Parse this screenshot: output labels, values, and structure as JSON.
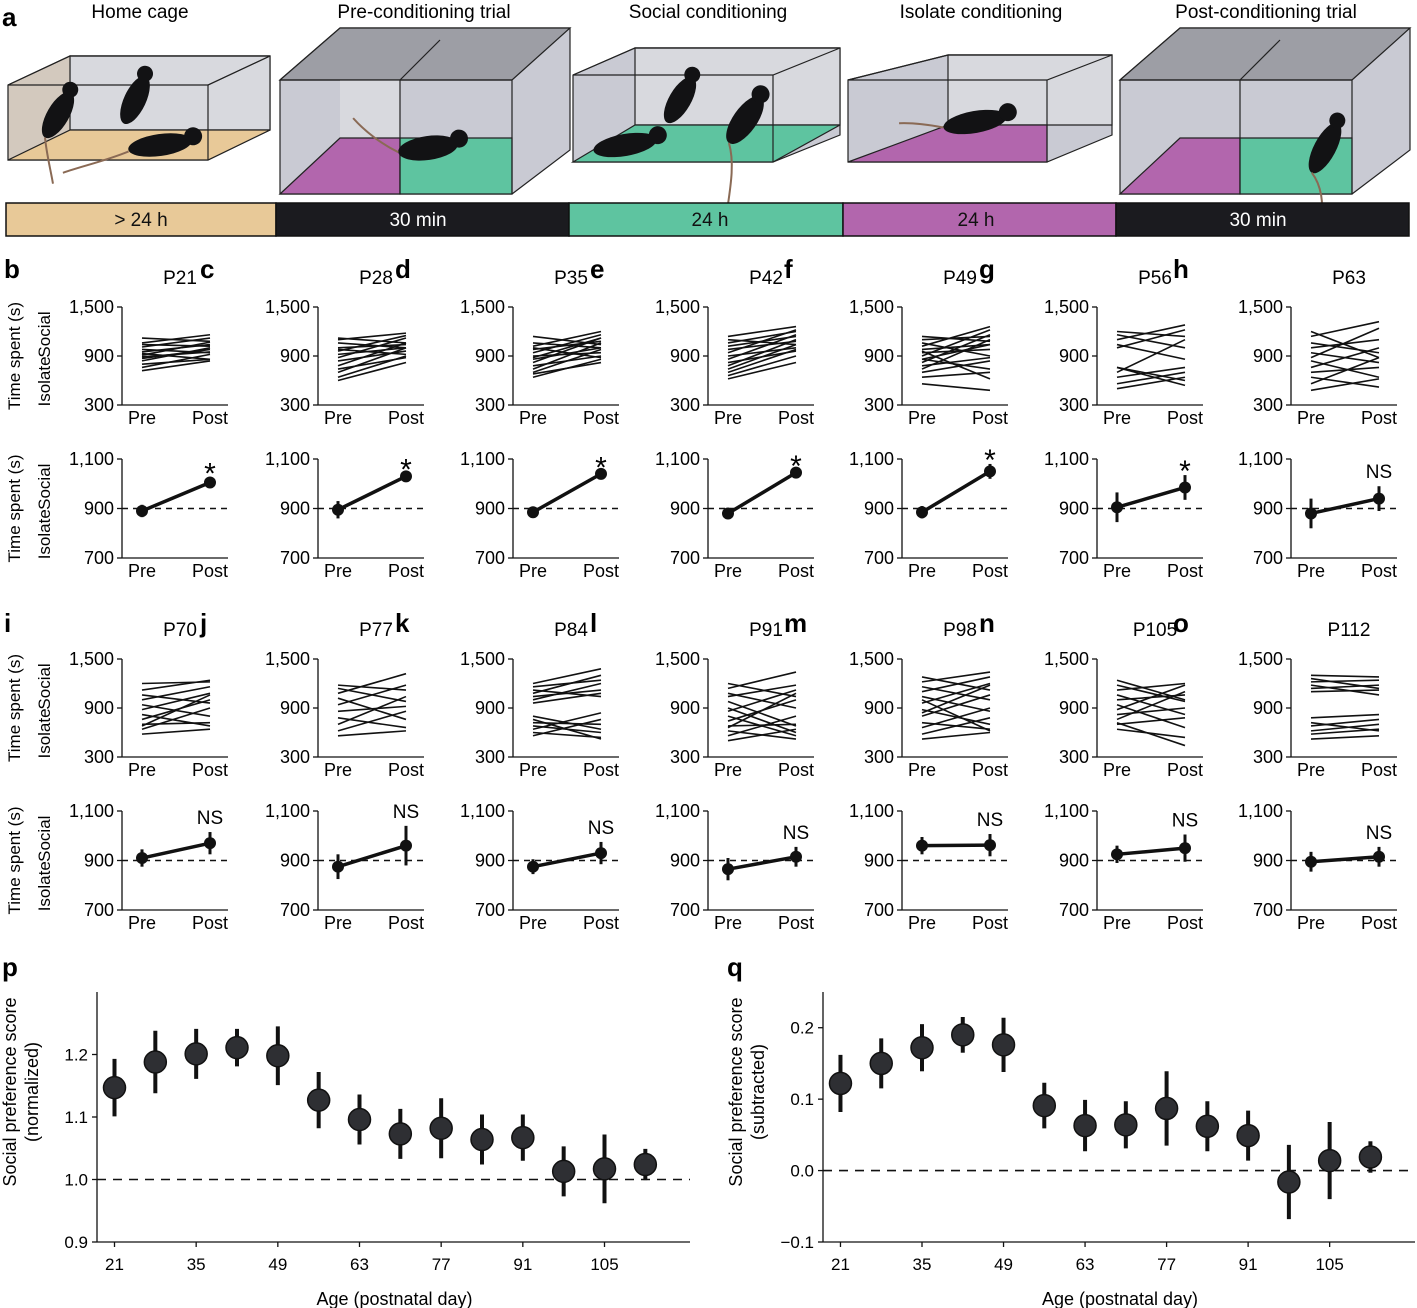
{
  "panel_a": {
    "letter": "a",
    "stages": [
      {
        "label": "Home cage",
        "duration": "> 24 h",
        "floor_color": "#e8c998",
        "timeline_color": "#e8c998",
        "timeline_text_color": "#111111"
      },
      {
        "label": "Pre-conditioning trial",
        "duration": "30 min",
        "floor_color": "#b266ad",
        "floor_color_2": "#5ec4a0",
        "timeline_color": "#1b1b1f",
        "timeline_text_color": "#ffffff"
      },
      {
        "label": "Social conditioning",
        "duration": "24 h",
        "floor_color": "#5ec4a0",
        "timeline_color": "#5ec4a0",
        "timeline_text_color": "#111111"
      },
      {
        "label": "Isolate conditioning",
        "duration": "24 h",
        "floor_color": "#b266ad",
        "timeline_color": "#b266ad",
        "timeline_text_color": "#111111"
      },
      {
        "label": "Post-conditioning trial",
        "duration": "30 min",
        "floor_color": "#b266ad",
        "floor_color_2": "#5ec4a0",
        "timeline_color": "#1b1b1f",
        "timeline_text_color": "#ffffff"
      }
    ],
    "icons": [
      "mouse-icon",
      "arena-box-icon"
    ],
    "box_colors": {
      "wall": "#c9cad3",
      "top": "#9d9ea5",
      "edge": "#222222"
    }
  },
  "small_plots": {
    "ylabel_main": "Time spent (s)",
    "ylabel_top": "Social",
    "ylabel_bottom": "Isolate",
    "xticks": [
      "Pre",
      "Post"
    ],
    "individual_yticks": [
      "300",
      "900",
      "1,500"
    ],
    "individual_ylim": [
      300,
      1500
    ],
    "mean_yticks": [
      "700",
      "900",
      "1,100"
    ],
    "mean_ylim": [
      700,
      1100
    ],
    "mean_reference": 900
  },
  "chart_data": [
    {
      "type": "line",
      "panel": "b",
      "title": "P21",
      "individual": [
        [
          760,
          920
        ],
        [
          800,
          860
        ],
        [
          840,
          1000
        ],
        [
          870,
          980
        ],
        [
          890,
          950
        ],
        [
          910,
          1070
        ],
        [
          930,
          860
        ],
        [
          950,
          1040
        ],
        [
          980,
          940
        ],
        [
          1010,
          1120
        ],
        [
          1040,
          1020
        ],
        [
          1060,
          1160
        ],
        [
          720,
          840
        ],
        [
          1120,
          1080
        ]
      ],
      "mean": {
        "pre": 890,
        "pre_err": 25,
        "post": 1005,
        "post_err": 20
      },
      "significance": "*"
    },
    {
      "type": "line",
      "panel": "c",
      "title": "P28",
      "individual": [
        [
          640,
          900
        ],
        [
          700,
          1000
        ],
        [
          740,
          880
        ],
        [
          780,
          1060
        ],
        [
          840,
          960
        ],
        [
          880,
          1120
        ],
        [
          920,
          1000
        ],
        [
          960,
          1150
        ],
        [
          1000,
          1040
        ],
        [
          1060,
          1000
        ],
        [
          1100,
          1180
        ],
        [
          1120,
          1060
        ],
        [
          600,
          820
        ],
        [
          980,
          920
        ]
      ],
      "mean": {
        "pre": 895,
        "pre_err": 35,
        "post": 1030,
        "post_err": 12
      },
      "significance": "*"
    },
    {
      "type": "line",
      "panel": "d",
      "title": "P35",
      "individual": [
        [
          640,
          860
        ],
        [
          700,
          980
        ],
        [
          740,
          1060
        ],
        [
          780,
          900
        ],
        [
          820,
          1120
        ],
        [
          860,
          1000
        ],
        [
          900,
          940
        ],
        [
          940,
          1160
        ],
        [
          980,
          1080
        ],
        [
          1020,
          1200
        ],
        [
          1060,
          1000
        ],
        [
          1140,
          1040
        ],
        [
          680,
          820
        ],
        [
          880,
          1120
        ],
        [
          1000,
          880
        ]
      ],
      "mean": {
        "pre": 885,
        "pre_err": 15,
        "post": 1040,
        "post_err": 10
      },
      "significance": "*"
    },
    {
      "type": "line",
      "panel": "e",
      "title": "P42",
      "individual": [
        [
          620,
          820
        ],
        [
          660,
          900
        ],
        [
          700,
          980
        ],
        [
          740,
          1040
        ],
        [
          780,
          1100
        ],
        [
          820,
          960
        ],
        [
          860,
          1160
        ],
        [
          900,
          1000
        ],
        [
          940,
          1220
        ],
        [
          980,
          1080
        ],
        [
          1020,
          1140
        ],
        [
          1060,
          1200
        ],
        [
          1100,
          1040
        ],
        [
          1140,
          1260
        ]
      ],
      "mean": {
        "pre": 880,
        "pre_err": 12,
        "post": 1045,
        "post_err": 10
      },
      "significance": "*"
    },
    {
      "type": "line",
      "panel": "f",
      "title": "P49",
      "individual": [
        [
          560,
          480
        ],
        [
          640,
          700
        ],
        [
          700,
          840
        ],
        [
          740,
          1100
        ],
        [
          780,
          880
        ],
        [
          820,
          1160
        ],
        [
          860,
          740
        ],
        [
          900,
          1220
        ],
        [
          940,
          980
        ],
        [
          980,
          1040
        ],
        [
          1020,
          1260
        ],
        [
          1060,
          900
        ],
        [
          1100,
          1140
        ],
        [
          1140,
          1080
        ],
        [
          860,
          1040
        ],
        [
          960,
          620
        ]
      ],
      "mean": {
        "pre": 885,
        "pre_err": 25,
        "post": 1050,
        "post_err": 30
      },
      "significance": "*"
    },
    {
      "type": "line",
      "panel": "g",
      "title": "P56",
      "individual": [
        [
          500,
          640
        ],
        [
          560,
          700
        ],
        [
          640,
          760
        ],
        [
          700,
          1100
        ],
        [
          760,
          600
        ],
        [
          1000,
          1220
        ],
        [
          1040,
          860
        ],
        [
          1100,
          1280
        ],
        [
          1160,
          1000
        ],
        [
          1200,
          1140
        ],
        [
          760,
          540
        ]
      ],
      "mean": {
        "pre": 905,
        "pre_err": 60,
        "post": 985,
        "post_err": 50
      },
      "significance": "*"
    },
    {
      "type": "line",
      "panel": "h",
      "title": "P63",
      "individual": [
        [
          480,
          620
        ],
        [
          560,
          880
        ],
        [
          640,
          520
        ],
        [
          700,
          760
        ],
        [
          760,
          1000
        ],
        [
          840,
          640
        ],
        [
          880,
          1240
        ],
        [
          940,
          820
        ],
        [
          1000,
          1100
        ],
        [
          1060,
          940
        ],
        [
          1140,
          1320
        ],
        [
          1200,
          880
        ]
      ],
      "mean": {
        "pre": 880,
        "pre_err": 60,
        "post": 940,
        "post_err": 50
      },
      "significance": "NS"
    },
    {
      "type": "line",
      "panel": "i",
      "title": "P70",
      "individual": [
        [
          580,
          640
        ],
        [
          640,
          900
        ],
        [
          700,
          720
        ],
        [
          760,
          1000
        ],
        [
          820,
          680
        ],
        [
          880,
          1080
        ],
        [
          940,
          800
        ],
        [
          1000,
          1160
        ],
        [
          1060,
          960
        ],
        [
          1120,
          1240
        ],
        [
          680,
          1060
        ],
        [
          1200,
          1220
        ]
      ],
      "mean": {
        "pre": 910,
        "pre_err": 35,
        "post": 970,
        "post_err": 45
      },
      "significance": "NS"
    },
    {
      "type": "line",
      "panel": "j",
      "title": "P77",
      "individual": [
        [
          560,
          620
        ],
        [
          620,
          860
        ],
        [
          700,
          1040
        ],
        [
          780,
          660
        ],
        [
          860,
          920
        ],
        [
          940,
          1180
        ],
        [
          1020,
          760
        ],
        [
          1080,
          1320
        ],
        [
          1140,
          980
        ],
        [
          1180,
          1120
        ]
      ],
      "mean": {
        "pre": 875,
        "pre_err": 50,
        "post": 960,
        "post_err": 80
      },
      "significance": "NS"
    },
    {
      "type": "line",
      "panel": "k",
      "title": "P84",
      "individual": [
        [
          560,
          760
        ],
        [
          600,
          540
        ],
        [
          640,
          840
        ],
        [
          680,
          600
        ],
        [
          720,
          700
        ],
        [
          760,
          520
        ],
        [
          800,
          640
        ],
        [
          960,
          1080
        ],
        [
          1000,
          1200
        ],
        [
          1040,
          1120
        ],
        [
          1080,
          1300
        ],
        [
          1120,
          1040
        ],
        [
          1160,
          1240
        ],
        [
          1200,
          1380
        ]
      ],
      "mean": {
        "pre": 875,
        "pre_err": 30,
        "post": 930,
        "post_err": 45
      },
      "significance": "NS"
    },
    {
      "type": "line",
      "panel": "l",
      "title": "P91",
      "individual": [
        [
          500,
          640
        ],
        [
          560,
          800
        ],
        [
          620,
          520
        ],
        [
          680,
          700
        ],
        [
          740,
          1000
        ],
        [
          800,
          560
        ],
        [
          860,
          1120
        ],
        [
          980,
          680
        ],
        [
          1040,
          1180
        ],
        [
          1080,
          900
        ],
        [
          1140,
          1340
        ],
        [
          1200,
          1040
        ],
        [
          900,
          600
        ],
        [
          660,
          1080
        ]
      ],
      "mean": {
        "pre": 865,
        "pre_err": 45,
        "post": 915,
        "post_err": 40
      },
      "significance": "NS"
    },
    {
      "type": "line",
      "panel": "m",
      "title": "P98",
      "individual": [
        [
          520,
          600
        ],
        [
          580,
          780
        ],
        [
          660,
          900
        ],
        [
          720,
          640
        ],
        [
          800,
          1060
        ],
        [
          880,
          700
        ],
        [
          960,
          1200
        ],
        [
          1040,
          860
        ],
        [
          1100,
          1280
        ],
        [
          1160,
          1000
        ],
        [
          1220,
          1340
        ],
        [
          1280,
          1120
        ],
        [
          840,
          1180
        ],
        [
          1000,
          620
        ]
      ],
      "mean": {
        "pre": 960,
        "pre_err": 35,
        "post": 962,
        "post_err": 45
      },
      "significance": "NS"
    },
    {
      "type": "line",
      "panel": "n",
      "title": "P105",
      "individual": [
        [
          640,
          540
        ],
        [
          700,
          780
        ],
        [
          760,
          1100
        ],
        [
          820,
          900
        ],
        [
          880,
          1180
        ],
        [
          940,
          660
        ],
        [
          1000,
          1060
        ],
        [
          1060,
          820
        ],
        [
          1120,
          1200
        ],
        [
          1180,
          980
        ],
        [
          720,
          440
        ],
        [
          1240,
          1000
        ]
      ],
      "mean": {
        "pre": 925,
        "pre_err": 35,
        "post": 950,
        "post_err": 55
      },
      "significance": "NS"
    },
    {
      "type": "line",
      "panel": "o",
      "title": "P112",
      "individual": [
        [
          520,
          560
        ],
        [
          580,
          640
        ],
        [
          620,
          700
        ],
        [
          680,
          760
        ],
        [
          720,
          620
        ],
        [
          780,
          820
        ],
        [
          1100,
          1120
        ],
        [
          1140,
          1180
        ],
        [
          1180,
          1060
        ],
        [
          1220,
          1240
        ],
        [
          1260,
          1140
        ],
        [
          1300,
          1280
        ]
      ],
      "mean": {
        "pre": 895,
        "pre_err": 40,
        "post": 915,
        "post_err": 40
      },
      "significance": "NS"
    },
    {
      "type": "scatter",
      "panel": "p",
      "xlabel": "Age (postnatal day)",
      "ylabel": "Social preference score (normalized)",
      "xticks": [
        21,
        35,
        49,
        63,
        77,
        91,
        105
      ],
      "yticks": [
        "0.9",
        "1.0",
        "1.1",
        "1.2"
      ],
      "xlim": [
        18,
        120
      ],
      "ylim": [
        0.9,
        1.3
      ],
      "reference": 1.0,
      "x": [
        21,
        28,
        35,
        42,
        49,
        56,
        63,
        70,
        77,
        84,
        91,
        98,
        105,
        112
      ],
      "y": [
        1.147,
        1.188,
        1.201,
        1.211,
        1.198,
        1.127,
        1.096,
        1.073,
        1.082,
        1.064,
        1.067,
        1.013,
        1.017,
        1.024
      ],
      "err": [
        0.046,
        0.05,
        0.04,
        0.03,
        0.047,
        0.045,
        0.04,
        0.04,
        0.048,
        0.04,
        0.037,
        0.04,
        0.055,
        0.025
      ]
    },
    {
      "type": "scatter",
      "panel": "q",
      "xlabel": "Age (postnatal day)",
      "ylabel": "Social preference score (subtracted)",
      "xticks": [
        21,
        35,
        49,
        63,
        77,
        91,
        105
      ],
      "yticks": [
        "−0.1",
        "0.0",
        "0.1",
        "0.2"
      ],
      "xlim": [
        18,
        120
      ],
      "ylim": [
        -0.1,
        0.25
      ],
      "reference": 0.0,
      "x": [
        21,
        28,
        35,
        42,
        49,
        56,
        63,
        70,
        77,
        84,
        91,
        98,
        105,
        112
      ],
      "y": [
        0.122,
        0.15,
        0.172,
        0.19,
        0.176,
        0.091,
        0.063,
        0.064,
        0.087,
        0.062,
        0.049,
        -0.016,
        0.014,
        0.019
      ],
      "err": [
        0.04,
        0.035,
        0.033,
        0.025,
        0.038,
        0.032,
        0.036,
        0.033,
        0.052,
        0.035,
        0.035,
        0.052,
        0.054,
        0.022
      ]
    }
  ]
}
